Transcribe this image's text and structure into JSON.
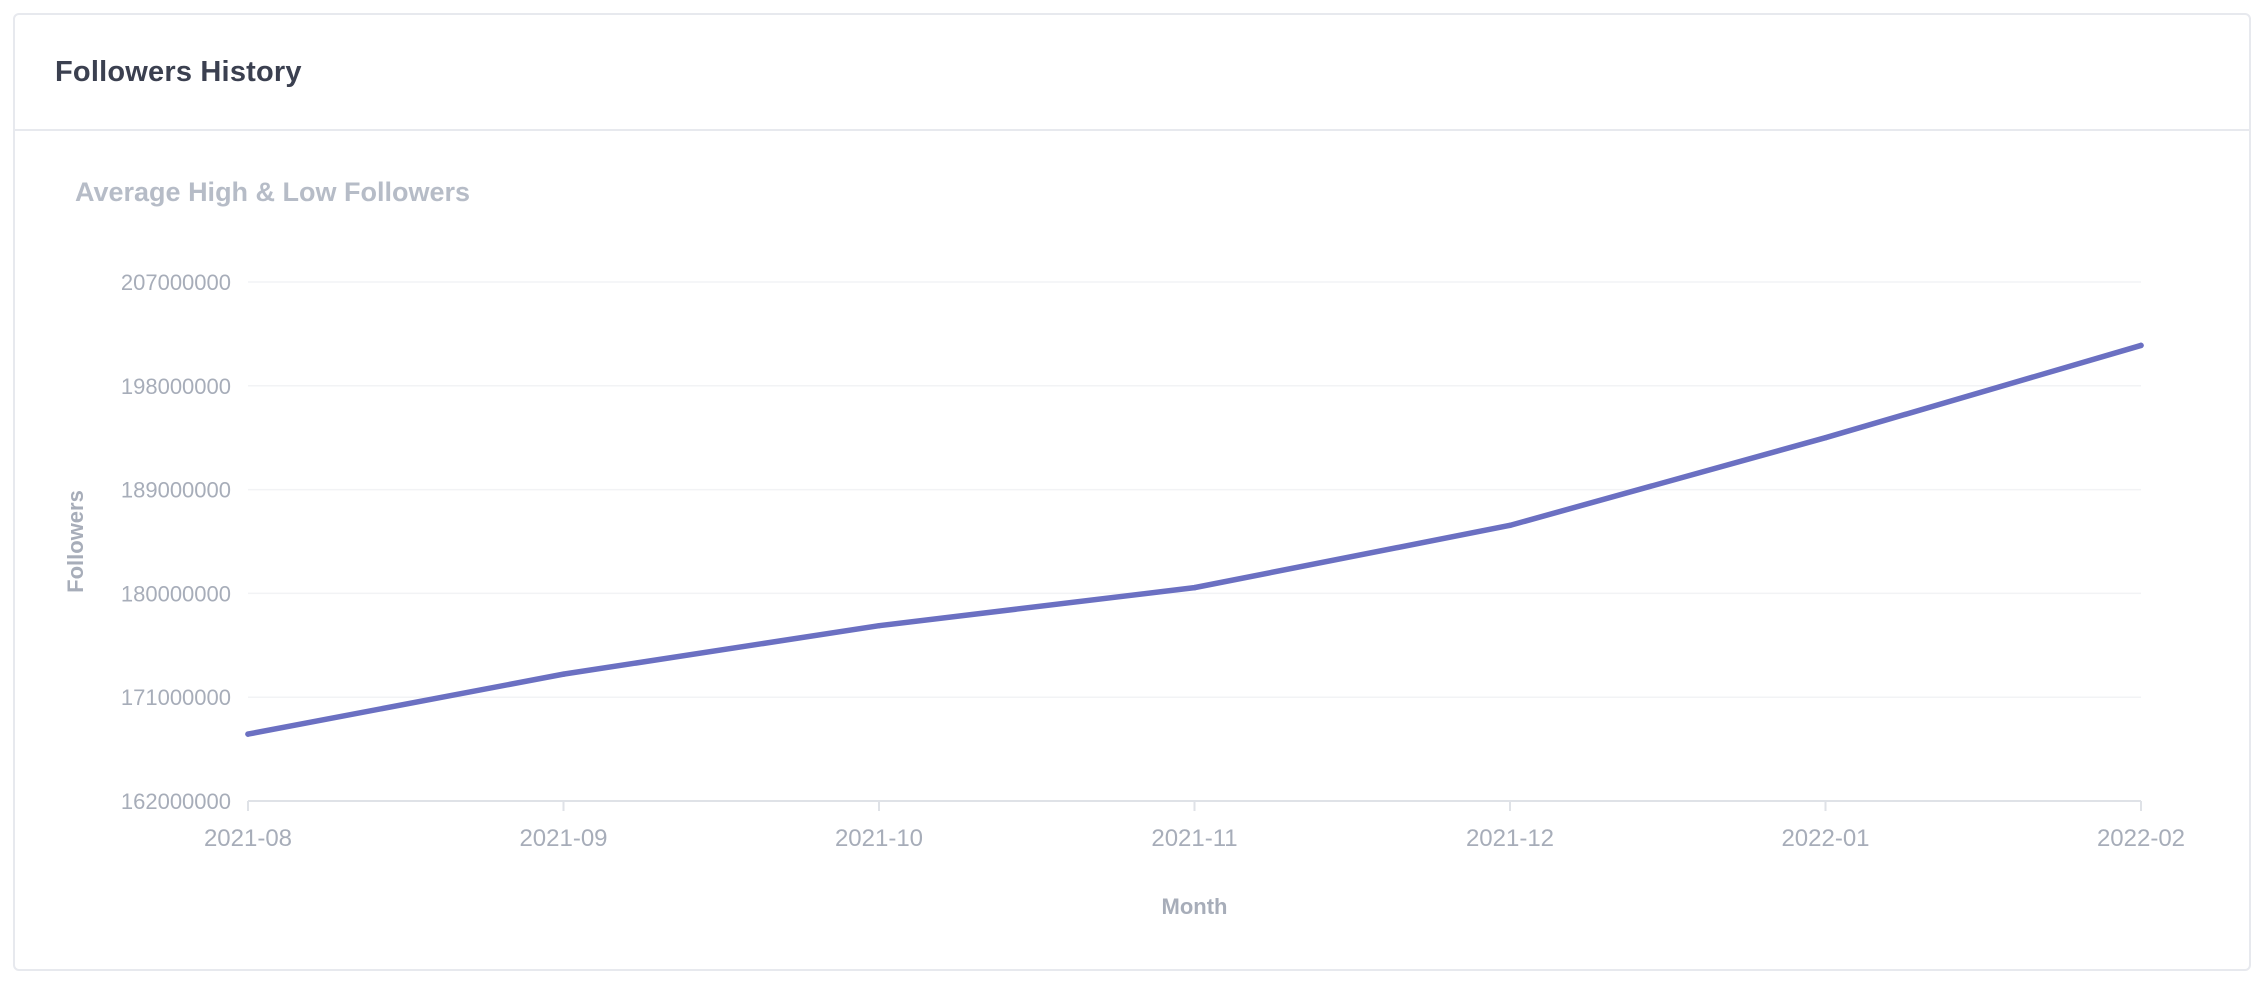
{
  "card": {
    "title": "Followers History"
  },
  "colors": {
    "series": "#6b70c2",
    "muted_text": "#a7adb9",
    "border": "#e7e9ee"
  },
  "chart_data": {
    "type": "line",
    "title": "Average High & Low Followers",
    "xlabel": "Month",
    "ylabel": "Followers",
    "categories": [
      "2021-08",
      "2021-09",
      "2021-10",
      "2021-11",
      "2021-12",
      "2022-01",
      "2022-02"
    ],
    "series": [
      {
        "values": [
          167800000,
          173000000,
          177200000,
          180500000,
          185900000,
          193500000,
          201500000
        ]
      }
    ],
    "yticks": [
      "207000000",
      "198000000",
      "189000000",
      "180000000",
      "171000000",
      "162000000"
    ],
    "ylim": [
      162000000,
      207000000
    ],
    "grid": true,
    "legend": "none"
  }
}
